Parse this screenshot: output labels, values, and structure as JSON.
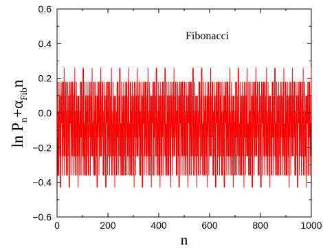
{
  "chart_data": {
    "type": "line",
    "title": "",
    "xlabel": "n",
    "ylabel": {
      "main": "ln P",
      "main_sub": "n",
      "plus": "+",
      "alpha": "α",
      "alpha_sub": "Fib",
      "tail": "n"
    },
    "annotation": "Fibonacci",
    "xlim": [
      0,
      1000
    ],
    "ylim": [
      -0.6,
      0.6
    ],
    "xticks": [
      0,
      200,
      400,
      600,
      800,
      1000
    ],
    "yticks": [
      -0.6,
      -0.4,
      -0.2,
      0.0,
      0.2,
      0.4,
      0.6
    ],
    "ytick_labels": [
      "−0.6",
      "−0.4",
      "−0.2",
      "0.0",
      "0.2",
      "0.4",
      "0.6"
    ],
    "grid": false,
    "series": [
      {
        "color": "#ff0000",
        "x_start": 1,
        "x_end": 1000,
        "levels": [
          0.26,
          0.18,
          0.1,
          0.01,
          -0.06,
          -0.14,
          -0.25,
          -0.36,
          -0.43
        ],
        "pattern": "fibonacci-word quasiperiodic oscillation between -0.43 and 0.26"
      }
    ]
  }
}
